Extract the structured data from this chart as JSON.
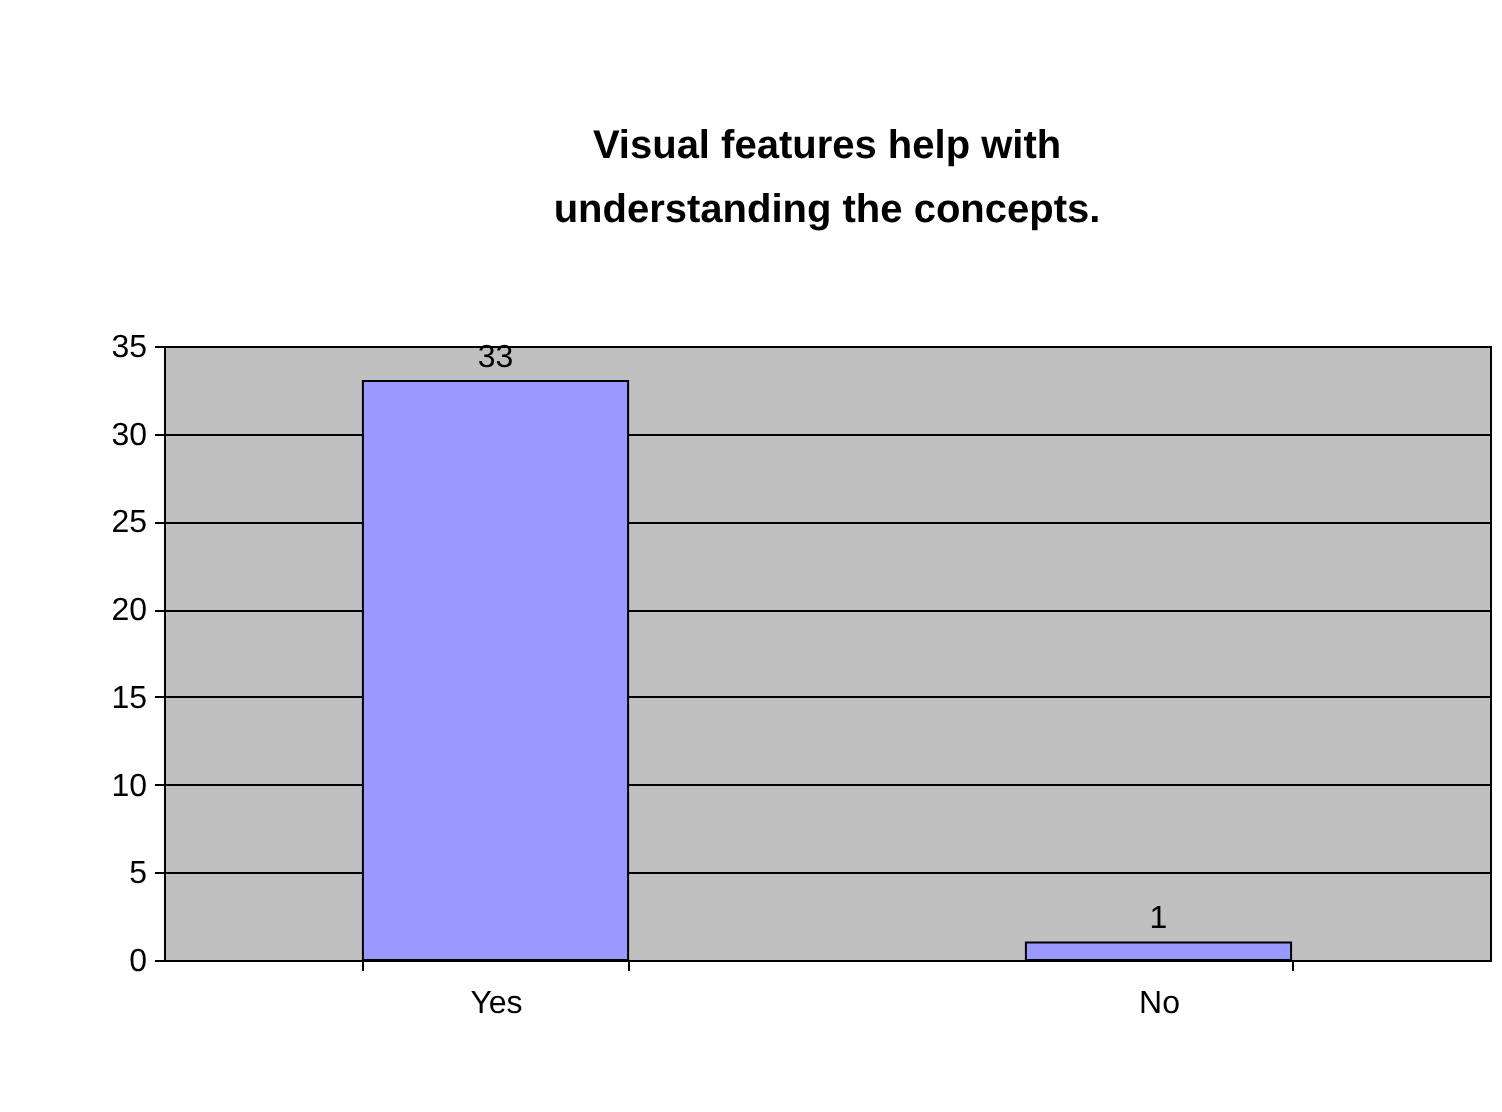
{
  "chart_data": {
    "type": "bar",
    "title": "Visual features help with\nunderstanding the concepts.",
    "categories": [
      "Yes",
      "No"
    ],
    "values": [
      33,
      1
    ],
    "color": "#9999ff",
    "ylim": [
      0,
      35
    ],
    "yticks": [
      0,
      5,
      10,
      15,
      20,
      25,
      30,
      35
    ],
    "grid": "y",
    "data_labels": true
  }
}
